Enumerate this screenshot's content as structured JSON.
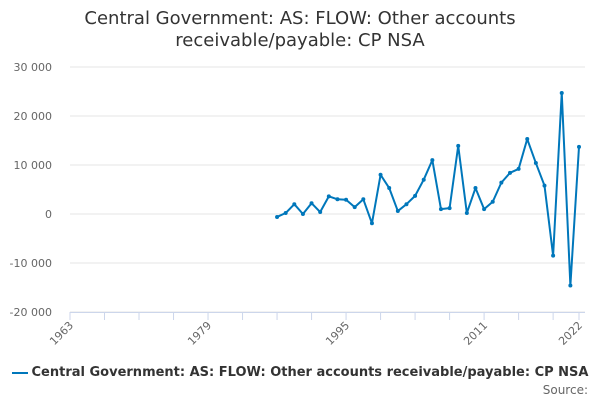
{
  "chart_data": {
    "type": "line",
    "title": "Central Government: AS: FLOW: Other accounts receivable/payable: CP NSA",
    "xlabel": "",
    "ylabel": "",
    "xlim": [
      1963,
      2022
    ],
    "ylim": [
      -20000,
      30000
    ],
    "x_ticks": [
      "1963",
      "1979",
      "1995",
      "2011",
      "2022"
    ],
    "y_ticks": [
      "30 000",
      "20 000",
      "10 000",
      "0",
      "-10 000",
      "-20 000"
    ],
    "grid": true,
    "legend_position": "bottom",
    "series": [
      {
        "name": "Central Government: AS: FLOW: Other accounts receivable/payable: CP NSA",
        "color": "#0077bb",
        "x": [
          1987,
          1988,
          1989,
          1990,
          1991,
          1992,
          1993,
          1994,
          1995,
          1996,
          1997,
          1998,
          1999,
          2000,
          2001,
          2002,
          2003,
          2004,
          2005,
          2006,
          2007,
          2008,
          2009,
          2010,
          2011,
          2012,
          2013,
          2014,
          2015,
          2016,
          2017,
          2018,
          2019,
          2020,
          2021,
          2022
        ],
        "values": [
          -600,
          200,
          2000,
          0,
          2200,
          400,
          3600,
          3000,
          2900,
          1400,
          3000,
          -1900,
          8000,
          5300,
          600,
          2000,
          3700,
          7000,
          11000,
          1000,
          1200,
          13900,
          200,
          5300,
          1000,
          2500,
          6400,
          8400,
          9200,
          15300,
          10400,
          5800,
          -8500,
          24700,
          -14600,
          13700
        ]
      }
    ]
  },
  "source_label": "Source:"
}
